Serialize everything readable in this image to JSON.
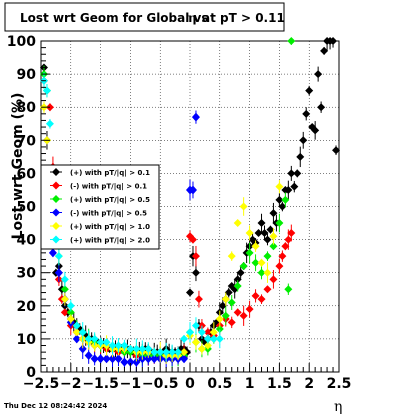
{
  "chart_data": {
    "type": "scatter",
    "title": "Lost wrt Geom for Global vs η at pT > 0.11",
    "title_parts": [
      "Lost wrt Geom for Global vs",
      "η",
      "at pT > 0.11"
    ],
    "xlabel": "η",
    "ylabel": "Lost wrt Geom (%)",
    "xlim": [
      -2.5,
      2.5
    ],
    "ylim": [
      0,
      100
    ],
    "x_ticks": [
      -2.5,
      -2,
      -1.5,
      -1,
      -0.5,
      0,
      0.5,
      1,
      1.5,
      2,
      2.5
    ],
    "x_tick_labels": [
      "−2.5",
      "−2",
      "−1.5",
      "−1",
      "−0.5",
      "0",
      "0.5",
      "1",
      "1.5",
      "2",
      "2.5"
    ],
    "y_ticks": [
      0,
      10,
      20,
      30,
      40,
      50,
      60,
      70,
      80,
      90,
      100
    ],
    "y_tick_labels": [
      "0",
      "10",
      "20",
      "30",
      "40",
      "50",
      "60",
      "70",
      "80",
      "90",
      "100"
    ],
    "grid": true,
    "legend_position": "middle-left",
    "timestamp": "Thu Dec 12 08:24:42 2024",
    "series": [
      {
        "name": "(+) with pT/|q| > 0.1",
        "color": "#000000",
        "x": [
          -2.45,
          -2.4,
          -2.35,
          -2.3,
          -2.25,
          -2.2,
          -2.15,
          -2.1,
          -2.05,
          -2.0,
          -1.95,
          -1.9,
          -1.85,
          -1.8,
          -1.75,
          -1.7,
          -1.65,
          -1.6,
          -1.55,
          -1.5,
          -1.45,
          -1.4,
          -1.35,
          -1.3,
          -1.25,
          -1.2,
          -1.15,
          -1.1,
          -1.05,
          -1.0,
          -0.95,
          -0.9,
          -0.85,
          -0.8,
          -0.75,
          -0.7,
          -0.65,
          -0.6,
          -0.55,
          -0.5,
          -0.45,
          -0.4,
          -0.35,
          -0.3,
          -0.25,
          -0.2,
          -0.15,
          -0.1,
          -0.05,
          0.0,
          0.05,
          0.1,
          0.15,
          0.2,
          0.25,
          0.3,
          0.35,
          0.4,
          0.45,
          0.5,
          0.55,
          0.6,
          0.65,
          0.7,
          0.75,
          0.8,
          0.85,
          0.9,
          0.95,
          1.0,
          1.05,
          1.1,
          1.15,
          1.2,
          1.25,
          1.3,
          1.35,
          1.4,
          1.45,
          1.5,
          1.55,
          1.6,
          1.65,
          1.7,
          1.75,
          1.8,
          1.85,
          1.9,
          1.95,
          2.0,
          2.05,
          2.1,
          2.15,
          2.2,
          2.25,
          2.3,
          2.35,
          2.4,
          2.45
        ],
        "y": [
          92,
          70,
          45,
          40,
          30,
          32,
          25,
          20,
          18,
          16,
          15,
          14,
          13,
          12,
          11,
          10,
          10,
          9,
          9,
          8,
          8,
          8,
          7,
          7,
          7,
          7,
          7,
          7,
          7,
          6,
          6,
          6,
          6,
          6,
          7,
          7,
          6,
          6,
          6,
          6,
          6,
          7,
          6,
          6,
          6,
          6,
          7,
          7,
          6,
          24,
          35,
          30,
          14,
          10,
          9,
          10,
          12,
          14,
          15,
          18,
          20,
          22,
          24,
          26,
          25,
          28,
          30,
          32,
          36,
          38,
          40,
          39,
          42,
          45,
          42,
          40,
          43,
          48,
          45,
          52,
          50,
          55,
          55,
          60,
          56,
          60,
          65,
          70,
          78,
          85,
          74,
          73,
          90,
          80,
          97,
          100,
          100,
          100,
          67
        ]
      },
      {
        "name": "(-) with pT/|q| > 0.1",
        "color": "#ff0000",
        "x": [
          -2.45,
          -2.35,
          -2.3,
          -2.25,
          -2.2,
          -2.15,
          -2.1,
          -2.0,
          -1.9,
          -1.8,
          -1.7,
          -1.6,
          -1.5,
          -1.4,
          -1.3,
          -1.2,
          -1.1,
          -1.0,
          -0.9,
          -0.8,
          -0.7,
          -0.6,
          -0.5,
          -0.4,
          -0.3,
          -0.2,
          -0.1,
          0.0,
          0.05,
          0.1,
          0.15,
          0.2,
          0.3,
          0.4,
          0.5,
          0.6,
          0.7,
          0.8,
          0.9,
          1.0,
          1.1,
          1.2,
          1.3,
          1.4,
          1.5,
          1.55,
          1.6,
          1.65,
          1.7
        ],
        "y": [
          88,
          80,
          62,
          45,
          28,
          22,
          18,
          14,
          12,
          10,
          9,
          8,
          8,
          7,
          7,
          6,
          6,
          6,
          5,
          5,
          5,
          5,
          5,
          5,
          5,
          5,
          6,
          41,
          40,
          35,
          22,
          14,
          12,
          11,
          14,
          16,
          15,
          18,
          17,
          19,
          23,
          22,
          25,
          28,
          32,
          35,
          38,
          40,
          42
        ]
      },
      {
        "name": "(+) with pT/|q| > 0.5",
        "color": "#00ee00",
        "x": [
          -2.45,
          -2.4,
          -2.3,
          -2.2,
          -2.1,
          -2.0,
          -1.9,
          -1.8,
          -1.7,
          -1.6,
          -1.5,
          -1.4,
          -1.3,
          -1.2,
          -1.1,
          -1.0,
          -0.9,
          -0.8,
          -0.7,
          -0.6,
          -0.5,
          -0.4,
          -0.3,
          -0.2,
          -0.1,
          0.0,
          0.1,
          0.2,
          0.3,
          0.4,
          0.5,
          0.6,
          0.7,
          0.8,
          0.9,
          1.0,
          1.1,
          1.2,
          1.3,
          1.4,
          1.5,
          1.6,
          1.65,
          1.7
        ],
        "y": [
          90,
          85,
          55,
          40,
          25,
          18,
          14,
          12,
          10,
          9,
          8,
          8,
          7,
          7,
          6,
          6,
          6,
          5,
          5,
          5,
          5,
          5,
          4,
          4,
          5,
          12,
          9,
          7,
          7,
          10,
          13,
          17,
          21,
          26,
          32,
          36,
          33,
          30,
          35,
          38,
          45,
          52,
          25,
          100
        ]
      },
      {
        "name": "(-) with pT/|q| > 0.5",
        "color": "#0000ff",
        "x": [
          -2.3,
          -2.2,
          -2.1,
          -2.0,
          -1.9,
          -1.8,
          -1.7,
          -1.6,
          -1.5,
          -1.4,
          -1.3,
          -1.2,
          -1.1,
          -1.0,
          -0.9,
          -0.8,
          -0.7,
          -0.6,
          -0.5,
          -0.4,
          -0.3,
          -0.2,
          -0.1,
          0.0,
          0.05,
          0.1
        ],
        "y": [
          36,
          30,
          22,
          15,
          10,
          7,
          5,
          4,
          4,
          4,
          4,
          4,
          3,
          3,
          3,
          4,
          4,
          4,
          4,
          4,
          4,
          4,
          4,
          55,
          55,
          77
        ]
      },
      {
        "name": "(+) with pT/|q| > 1.0",
        "color": "#ffff00",
        "x": [
          -2.45,
          -2.4,
          -2.3,
          -2.2,
          -2.1,
          -2.0,
          -1.9,
          -1.8,
          -1.7,
          -1.6,
          -1.5,
          -1.4,
          -1.3,
          -1.2,
          -1.1,
          -1.0,
          -0.9,
          -0.8,
          -0.7,
          -0.6,
          -0.5,
          -0.4,
          -0.3,
          -0.2,
          -0.1,
          0.0,
          0.1,
          0.2,
          0.3,
          0.4,
          0.5,
          0.6,
          0.7,
          0.8,
          0.9,
          1.0,
          1.1,
          1.2,
          1.3,
          1.4,
          1.5
        ],
        "y": [
          80,
          70,
          50,
          35,
          22,
          16,
          12,
          10,
          9,
          8,
          8,
          8,
          7,
          7,
          7,
          7,
          6,
          6,
          6,
          6,
          6,
          5,
          5,
          5,
          6,
          11,
          9,
          7,
          8,
          12,
          16,
          22,
          35,
          45,
          50,
          42,
          38,
          33,
          30,
          41,
          56
        ]
      },
      {
        "name": "(+) with pT/|q| > 2.0",
        "color": "#00ffff",
        "x": [
          -2.45,
          -2.4,
          -2.35,
          -2.3,
          -2.2,
          -2.1,
          -2.0,
          -1.9,
          -1.8,
          -1.7,
          -1.6,
          -1.5,
          -1.4,
          -1.3,
          -1.2,
          -1.1,
          -1.0,
          -0.9,
          -0.8,
          -0.7,
          -0.6,
          -0.5,
          -0.4,
          -0.3,
          -0.2,
          -0.1,
          0.0,
          0.1,
          0.2,
          0.3,
          0.4,
          0.5
        ],
        "y": [
          88,
          85,
          75,
          45,
          35,
          28,
          20,
          14,
          12,
          10,
          10,
          9,
          9,
          8,
          8,
          8,
          7,
          7,
          7,
          7,
          6,
          6,
          6,
          6,
          6,
          10,
          12,
          14,
          12,
          10,
          10,
          10
        ]
      }
    ]
  }
}
